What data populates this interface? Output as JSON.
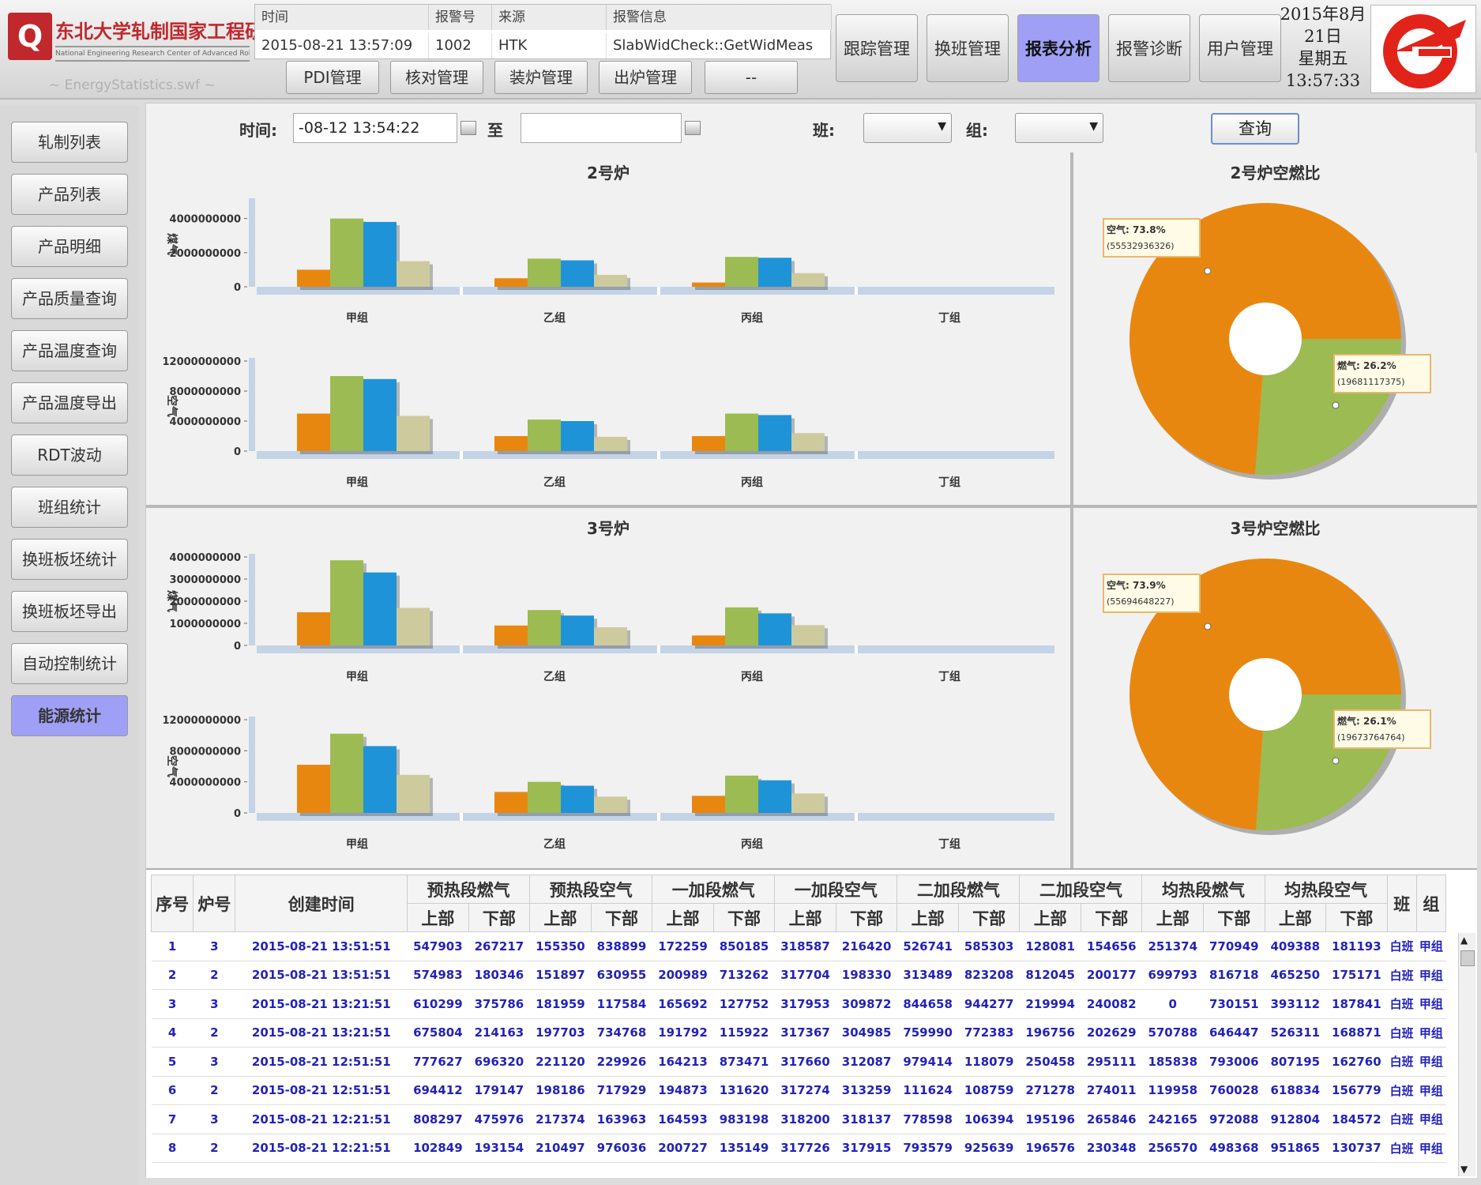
{
  "header": {
    "logo_text": "东北大学轧制国家工程研究中心",
    "logo_sub": "National Engineering Research Center of Advanced Rolling",
    "swf_name": "~ EnergyStatistics.swf ~",
    "alarm": {
      "headers": [
        "时间",
        "报警号",
        "来源",
        "报警信息"
      ],
      "values": [
        "2015-08-21 13:57:09",
        "1002",
        "HTK",
        "SlabWidCheck::GetWidMeas"
      ]
    },
    "sub_buttons": [
      "PDI管理",
      "核对管理",
      "装炉管理",
      "出炉管理",
      "--"
    ],
    "nav": [
      "跟踪管理",
      "换班管理",
      "报表分析",
      "报警诊断",
      "用户管理"
    ],
    "active_nav": "报表分析",
    "date": {
      "line1": "2015年8月",
      "line2": "21日",
      "line3": "星期五",
      "time": "13:57:33"
    }
  },
  "sidebar": {
    "items": [
      "轧制列表",
      "产品列表",
      "产品明细",
      "产品质量查询",
      "产品温度查询",
      "产品温度导出",
      "RDT波动",
      "班组统计",
      "换班板坯统计",
      "换班板坯导出",
      "自动控制统计",
      "能源统计"
    ],
    "active": "能源统计"
  },
  "filter": {
    "time_label": "时间:",
    "start": "-08-12 13:54:22",
    "to_label": "至",
    "end": "",
    "shift_label": "班:",
    "group_label": "组:",
    "query_label": "查询"
  },
  "colors": {
    "orange": "#e8870f",
    "green": "#9cbb52",
    "blue": "#1f93d8",
    "beige": "#cdcb9d",
    "axis": "#c5d3e6"
  },
  "chart_data": [
    {
      "type": "bar",
      "title": "2号炉",
      "ylabel": "煤气",
      "categories": [
        "甲组",
        "乙组",
        "丙组",
        "丁组"
      ],
      "yticks": [
        "4000000000",
        "2000000000",
        "0"
      ],
      "ylim": [
        0,
        5000000000
      ],
      "series": [
        {
          "values": [
            1000000000,
            500000000,
            250000000,
            0
          ]
        },
        {
          "values": [
            4000000000,
            1650000000,
            1750000000,
            0
          ]
        },
        {
          "values": [
            3800000000,
            1550000000,
            1700000000,
            0
          ]
        },
        {
          "values": [
            1500000000,
            700000000,
            800000000,
            0
          ]
        }
      ]
    },
    {
      "type": "bar",
      "title": "",
      "ylabel": "空气",
      "categories": [
        "甲组",
        "乙组",
        "丙组",
        "丁组"
      ],
      "yticks": [
        "12000000000",
        "8000000000",
        "4000000000",
        "0"
      ],
      "ylim": [
        0,
        12000000000
      ],
      "series": [
        {
          "values": [
            5000000000,
            2000000000,
            2000000000,
            0
          ]
        },
        {
          "values": [
            10000000000,
            4200000000,
            5000000000,
            0
          ]
        },
        {
          "values": [
            9600000000,
            4000000000,
            4800000000,
            0
          ]
        },
        {
          "values": [
            4700000000,
            1900000000,
            2400000000,
            0
          ]
        }
      ]
    },
    {
      "type": "pie",
      "title": "2号炉空燃比",
      "slices": [
        {
          "label": "空气",
          "pct": "73.8%",
          "value": "55532936326"
        },
        {
          "label": "燃气",
          "pct": "26.2%",
          "value": "19681117375"
        }
      ]
    },
    {
      "type": "bar",
      "title": "3号炉",
      "ylabel": "煤气",
      "categories": [
        "甲组",
        "乙组",
        "丙组",
        "丁组"
      ],
      "yticks": [
        "4000000000",
        "3000000000",
        "2000000000",
        "1000000000",
        "0"
      ],
      "ylim": [
        0,
        4000000000
      ],
      "series": [
        {
          "values": [
            1500000000,
            900000000,
            450000000,
            0
          ]
        },
        {
          "values": [
            3850000000,
            1600000000,
            1720000000,
            0
          ]
        },
        {
          "values": [
            3300000000,
            1350000000,
            1450000000,
            0
          ]
        },
        {
          "values": [
            1700000000,
            820000000,
            920000000,
            0
          ]
        }
      ]
    },
    {
      "type": "bar",
      "title": "",
      "ylabel": "空气",
      "categories": [
        "甲组",
        "乙组",
        "丙组",
        "丁组"
      ],
      "yticks": [
        "12000000000",
        "8000000000",
        "4000000000",
        "0"
      ],
      "ylim": [
        0,
        12000000000
      ],
      "series": [
        {
          "values": [
            6200000000,
            2700000000,
            2200000000,
            0
          ]
        },
        {
          "values": [
            10200000000,
            4000000000,
            4800000000,
            0
          ]
        },
        {
          "values": [
            8600000000,
            3500000000,
            4200000000,
            0
          ]
        },
        {
          "values": [
            4900000000,
            2100000000,
            2500000000,
            0
          ]
        }
      ]
    },
    {
      "type": "pie",
      "title": "3号炉空燃比",
      "slices": [
        {
          "label": "空气",
          "pct": "73.9%",
          "value": "55694648227"
        },
        {
          "label": "燃气",
          "pct": "26.1%",
          "value": "19673764764"
        }
      ]
    }
  ],
  "table": {
    "head1": [
      "序号",
      "炉号",
      "创建时间",
      "预热段燃气",
      "预热段空气",
      "一加段燃气",
      "一加段空气",
      "二加段燃气",
      "二加段空气",
      "均热段燃气",
      "均热段空气",
      "班",
      "组"
    ],
    "head2": [
      "上部",
      "下部"
    ],
    "rows": [
      [
        "1",
        "3",
        "2015-08-21 13:51:51",
        "547903",
        "267217",
        "155350",
        "838899",
        "172259",
        "850185",
        "318587",
        "216420",
        "526741",
        "585303",
        "128081",
        "154656",
        "251374",
        "770949",
        "409388",
        "181193",
        "白班",
        "甲组"
      ],
      [
        "2",
        "2",
        "2015-08-21 13:51:51",
        "574983",
        "180346",
        "151897",
        "630955",
        "200989",
        "713262",
        "317704",
        "198330",
        "313489",
        "823208",
        "812045",
        "200177",
        "699793",
        "816718",
        "465250",
        "175171",
        "白班",
        "甲组"
      ],
      [
        "3",
        "3",
        "2015-08-21 13:21:51",
        "610299",
        "375786",
        "181959",
        "117584",
        "165692",
        "127752",
        "317953",
        "309872",
        "844658",
        "944277",
        "219994",
        "240082",
        "0",
        "730151",
        "393112",
        "187841",
        "白班",
        "甲组"
      ],
      [
        "4",
        "2",
        "2015-08-21 13:21:51",
        "675804",
        "214163",
        "197703",
        "734768",
        "191792",
        "115922",
        "317367",
        "304985",
        "759990",
        "772383",
        "196756",
        "202629",
        "570788",
        "646447",
        "526311",
        "168871",
        "白班",
        "甲组"
      ],
      [
        "5",
        "3",
        "2015-08-21 12:51:51",
        "777627",
        "696320",
        "221120",
        "229926",
        "164213",
        "873471",
        "317660",
        "312087",
        "979414",
        "118079",
        "250458",
        "295111",
        "185838",
        "793006",
        "807195",
        "162760",
        "白班",
        "甲组"
      ],
      [
        "6",
        "2",
        "2015-08-21 12:51:51",
        "694412",
        "179147",
        "198186",
        "717929",
        "194873",
        "131620",
        "317274",
        "313259",
        "111624",
        "108759",
        "271278",
        "274011",
        "119958",
        "760028",
        "618834",
        "156779",
        "白班",
        "甲组"
      ],
      [
        "7",
        "3",
        "2015-08-21 12:21:51",
        "808297",
        "475976",
        "217374",
        "163963",
        "164593",
        "983198",
        "318200",
        "318137",
        "778598",
        "106394",
        "195196",
        "265846",
        "242165",
        "972088",
        "912804",
        "184572",
        "白班",
        "甲组"
      ],
      [
        "8",
        "2",
        "2015-08-21 12:21:51",
        "102849",
        "193154",
        "210497",
        "976036",
        "200727",
        "135149",
        "317726",
        "317915",
        "793579",
        "925639",
        "196576",
        "230348",
        "256570",
        "498368",
        "951865",
        "130737",
        "白班",
        "甲组"
      ]
    ]
  }
}
